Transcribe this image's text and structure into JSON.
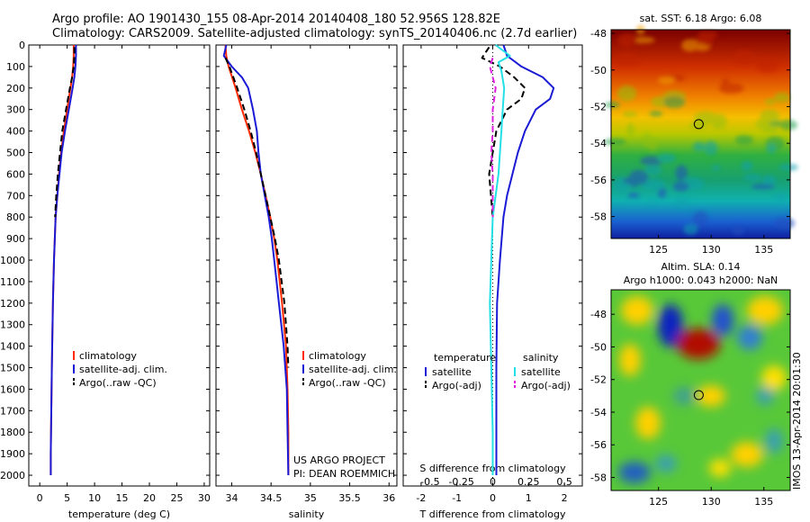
{
  "header": {
    "title_line1": "Argo profile: AO 1901430_155 08-Apr-2014 20140408_180 52.956S 128.82E",
    "title_line2": "Climatology: CARS2009. Satellite-adjusted climatology: synTS_20140406.nc (2.7d earlier)"
  },
  "side_label": "IMOS 13-Apr-2014 20:01:30",
  "colors": {
    "climatology": "#ff2a00",
    "satellite": "#1a1ad6",
    "argo": "#000000",
    "sat_salinity": "#22e0e6",
    "argo_salinity": "#e020e0"
  },
  "chart_data": [
    {
      "type": "line",
      "xlabel": "temperature (deg C)",
      "ylabel": "",
      "xlim": [
        -2,
        31
      ],
      "ylim": [
        2050,
        0
      ],
      "xticks": [
        0,
        5,
        10,
        15,
        20,
        25,
        30
      ],
      "yticks": [
        0,
        100,
        200,
        300,
        400,
        500,
        600,
        700,
        800,
        900,
        1000,
        1100,
        1200,
        1300,
        1400,
        1500,
        1600,
        1700,
        1800,
        1900,
        2000
      ],
      "legend": [
        "climatology",
        "satellite-adj. clim.",
        "Argo(..raw -QC)"
      ],
      "series": [
        {
          "name": "climatology",
          "color": "#ff2a00",
          "style": "solid",
          "depth": [
            0,
            50,
            100,
            150,
            200,
            300,
            400,
            500,
            600,
            700,
            800,
            1000,
            1200,
            1500,
            1700,
            1900,
            2000
          ],
          "values": [
            6.2,
            6.2,
            6.1,
            5.9,
            5.6,
            5.0,
            4.4,
            3.9,
            3.5,
            3.2,
            2.9,
            2.6,
            2.4,
            2.2,
            2.1,
            2.0,
            2.0
          ]
        },
        {
          "name": "satellite-adj. clim.",
          "color": "#1a1ad6",
          "style": "solid",
          "depth": [
            0,
            50,
            100,
            150,
            200,
            300,
            400,
            500,
            600,
            700,
            800,
            1000,
            1200,
            1500,
            1700,
            1900,
            2000
          ],
          "values": [
            6.6,
            6.6,
            6.5,
            6.3,
            6.0,
            5.3,
            4.6,
            4.0,
            3.6,
            3.2,
            2.9,
            2.6,
            2.4,
            2.2,
            2.1,
            2.0,
            2.0
          ]
        },
        {
          "name": "Argo(..raw -QC)",
          "color": "#000000",
          "style": "dash",
          "depth": [
            10,
            50,
            100,
            150,
            200,
            300,
            400,
            500,
            600,
            700,
            800
          ],
          "values": [
            6.3,
            6.3,
            6.2,
            5.9,
            5.5,
            4.8,
            4.1,
            3.7,
            3.3,
            3.0,
            2.8
          ]
        }
      ]
    },
    {
      "type": "line",
      "xlabel": "salinity",
      "ylabel": "",
      "xlim": [
        33.8,
        36.1
      ],
      "ylim": [
        2050,
        0
      ],
      "xticks": [
        34,
        34.5,
        35,
        35.5,
        36
      ],
      "legend": [
        "climatology",
        "satellite-adj. clim.",
        "Argo(..raw -QC)"
      ],
      "annotation_lines": [
        "US ARGO PROJECT",
        "PI: DEAN ROEMMICH"
      ],
      "series": [
        {
          "name": "climatology",
          "color": "#ff2a00",
          "style": "solid",
          "depth": [
            0,
            50,
            100,
            200,
            300,
            400,
            500,
            600,
            700,
            800,
            900,
            1000,
            1200,
            1400,
            1600,
            1800,
            2000
          ],
          "values": [
            33.92,
            33.93,
            33.96,
            34.05,
            34.13,
            34.22,
            34.3,
            34.37,
            34.43,
            34.49,
            34.54,
            34.58,
            34.64,
            34.69,
            34.71,
            34.72,
            34.72
          ]
        },
        {
          "name": "satellite-adj. clim.",
          "color": "#1a1ad6",
          "style": "solid",
          "depth": [
            0,
            50,
            100,
            150,
            200,
            300,
            400,
            500,
            600,
            700,
            800,
            900,
            1000,
            1200,
            1400,
            1600,
            1800,
            2000
          ],
          "values": [
            33.93,
            33.9,
            34.0,
            34.13,
            34.21,
            34.27,
            34.32,
            34.34,
            34.37,
            34.42,
            34.47,
            34.51,
            34.54,
            34.6,
            34.66,
            34.7,
            34.71,
            34.72
          ]
        },
        {
          "name": "Argo(..raw -QC)",
          "color": "#000000",
          "style": "dash",
          "depth": [
            60,
            100,
            200,
            300,
            400,
            500,
            600,
            700,
            800,
            900,
            1000,
            1200,
            1400,
            1500
          ],
          "values": [
            33.92,
            33.97,
            34.07,
            34.16,
            34.24,
            34.31,
            34.37,
            34.43,
            34.49,
            34.55,
            34.6,
            34.67,
            34.71,
            34.72
          ]
        }
      ]
    },
    {
      "type": "line",
      "xlabel": "T difference from climatology",
      "top_axis_label": "S difference from climatology",
      "xlim": [
        -2.5,
        2.5
      ],
      "ylim": [
        2050,
        0
      ],
      "xticks": [
        -2,
        -1,
        0,
        1,
        2
      ],
      "top_ticks": [
        "-0.5",
        "-0.25",
        "0",
        "0.25",
        "0.5"
      ],
      "legend_groups": [
        {
          "heading": "temperature",
          "items": [
            "satellite",
            "Argo(-adj)"
          ]
        },
        {
          "heading": "salinity",
          "items": [
            "satellite",
            "Argo(-adj)"
          ]
        }
      ],
      "series": [
        {
          "name": "satellite",
          "group": "temperature",
          "color": "#1a1ad6",
          "style": "solid",
          "depth": [
            0,
            50,
            100,
            150,
            200,
            250,
            300,
            400,
            500,
            600,
            700,
            800,
            1000,
            1200,
            1500,
            1800,
            2000
          ],
          "values": [
            0.3,
            0.4,
            0.8,
            1.4,
            1.7,
            1.6,
            1.2,
            0.9,
            0.7,
            0.55,
            0.4,
            0.3,
            0.2,
            0.12,
            0.1,
            0.1,
            0.1
          ]
        },
        {
          "name": "Argo(-adj)",
          "group": "temperature",
          "color": "#000000",
          "style": "dash",
          "depth": [
            10,
            60,
            100,
            150,
            200,
            250,
            300,
            400,
            500,
            600,
            700,
            800
          ],
          "values": [
            -0.1,
            -0.3,
            0.2,
            0.6,
            0.9,
            0.8,
            0.4,
            0.1,
            0.0,
            -0.1,
            -0.05,
            0.0
          ]
        },
        {
          "name": "satellite",
          "group": "salinity",
          "color": "#22e0e6",
          "style": "solid",
          "depth": [
            0,
            50,
            80,
            120,
            200,
            300,
            400,
            600,
            800,
            1000,
            1200,
            1500,
            1800,
            2000
          ],
          "values": [
            0.02,
            0.12,
            0.04,
            0.06,
            0.08,
            0.07,
            0.06,
            0.04,
            0.0,
            -0.01,
            -0.02,
            -0.01,
            0.0,
            0.0
          ]
        },
        {
          "name": "Argo(-adj)",
          "group": "salinity",
          "color": "#e020e0",
          "style": "dash",
          "depth": [
            60,
            100,
            150,
            200,
            300,
            400,
            500,
            600,
            700,
            800
          ],
          "values": [
            0.0,
            -0.02,
            0.0,
            0.02,
            0.0,
            0.0,
            -0.01,
            0.0,
            0.0,
            0.0
          ]
        }
      ]
    },
    {
      "type": "heatmap",
      "title": "sat. SST: 6.18 Argo: 6.08",
      "xlim": [
        120.5,
        137.5
      ],
      "ylim": [
        -59.2,
        -47.8
      ],
      "xticks": [
        125,
        130,
        135
      ],
      "yticks": [
        -48,
        -50,
        -52,
        -54,
        -56,
        -58
      ],
      "marker": {
        "lon": 128.82,
        "lat": -52.956
      },
      "colors": [
        "#7a0000",
        "#d03000",
        "#f08000",
        "#f4c000",
        "#b8c800",
        "#30b040",
        "#18a070",
        "#10b0b0",
        "#1a60d0",
        "#1020a0"
      ],
      "gradient_stops": [
        0,
        0.18,
        0.32,
        0.42,
        0.5,
        0.6,
        0.72,
        0.82,
        0.92,
        1
      ],
      "speckle_color": "#28a0a0"
    },
    {
      "type": "heatmap",
      "title": "Altim. SLA: 0.14",
      "subtitle": "Argo h1000: 0.043 h2000: NaN",
      "xlim": [
        120.5,
        137.5
      ],
      "ylim": [
        -58.8,
        -46.5
      ],
      "xticks": [
        125,
        130,
        135
      ],
      "yticks": [
        -48,
        -50,
        -52,
        -54,
        -56,
        -58
      ],
      "marker": {
        "lon": 128.82,
        "lat": -52.956
      },
      "background_color": "#58c838",
      "blob_colors": [
        "#1020c0",
        "#2f60d0",
        "#8000",
        "#ff5a00",
        "#ffd000"
      ]
    }
  ]
}
